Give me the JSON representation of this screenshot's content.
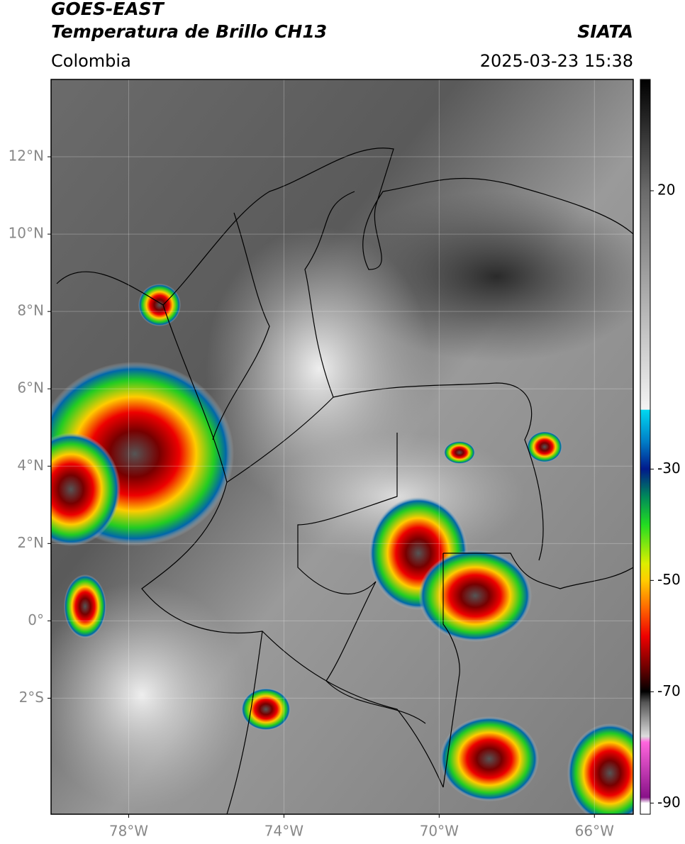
{
  "header": {
    "title": "GOES-EAST",
    "subtitle": "Temperatura de Brillo CH13",
    "source": "SIATA",
    "region": "Colombia",
    "datetime": "2025-03-23 15:38"
  },
  "map": {
    "type": "satellite-image",
    "xlim": [
      -80,
      -65
    ],
    "ylim": [
      -5,
      14
    ],
    "xticks": [
      {
        "value": -78,
        "label": "78°W"
      },
      {
        "value": -74,
        "label": "74°W"
      },
      {
        "value": -70,
        "label": "70°W"
      },
      {
        "value": -66,
        "label": "66°W"
      }
    ],
    "yticks": [
      {
        "value": 12,
        "label": "12°N"
      },
      {
        "value": 10,
        "label": "10°N"
      },
      {
        "value": 8,
        "label": "8°N"
      },
      {
        "value": 6,
        "label": "6°N"
      },
      {
        "value": 4,
        "label": "4°N"
      },
      {
        "value": 2,
        "label": "2°N"
      },
      {
        "value": 0,
        "label": "0°"
      },
      {
        "value": -2,
        "label": "2°S"
      }
    ],
    "grid": true
  },
  "colorbar": {
    "lim": [
      -92,
      40
    ],
    "ticks": [
      20,
      -30,
      -50,
      -70,
      -90
    ]
  }
}
